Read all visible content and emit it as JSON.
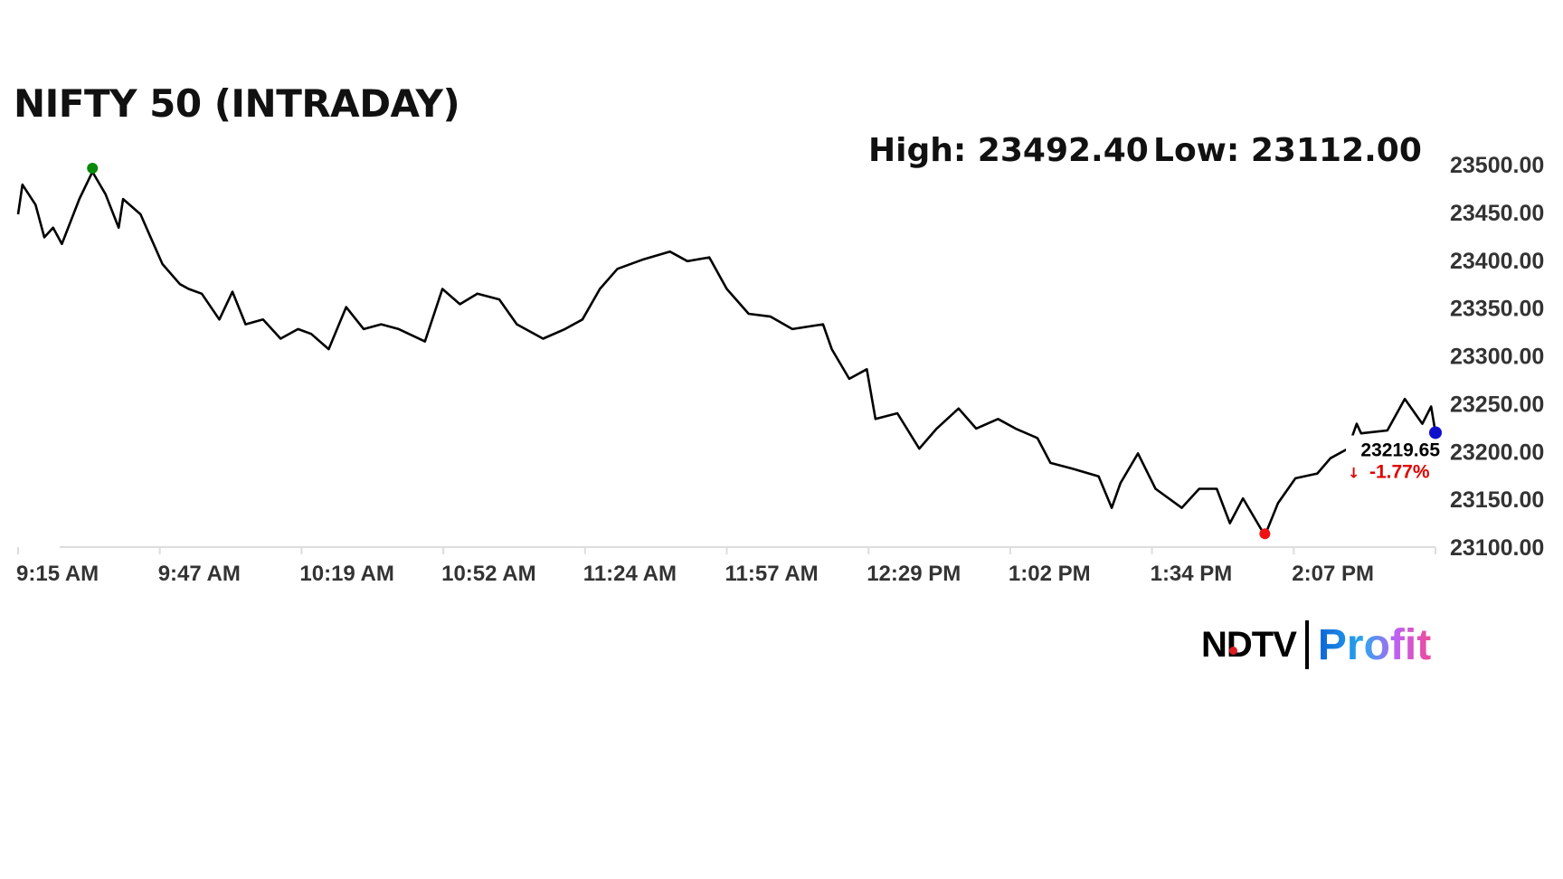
{
  "header": {
    "title": "NIFTY 50 (INTRADAY)",
    "high_label": "High: 23492.40",
    "low_label": "Low: 23112.00"
  },
  "logo": {
    "brand": "NDTV",
    "product": "Profit"
  },
  "chart_data": {
    "type": "line",
    "title": "NIFTY 50 (INTRADAY)",
    "xlabel": "",
    "ylabel": "",
    "x_ticks": [
      "9:15 AM",
      "9:47 AM",
      "10:19 AM",
      "10:52 AM",
      "11:24 AM",
      "11:57 AM",
      "12:29 PM",
      "1:02 PM",
      "1:34 PM",
      "2:07 PM"
    ],
    "y_ticks": [
      "23100.00",
      "23150.00",
      "23200.00",
      "23250.00",
      "23300.00",
      "23350.00",
      "23400.00",
      "23450.00",
      "23500.00"
    ],
    "xlim": [
      "09:15",
      "14:39"
    ],
    "ylim": [
      23100,
      23500
    ],
    "grid": false,
    "line_color": "#000000",
    "high": {
      "time": "09:32",
      "value": 23492.4,
      "color": "#0a8a0a"
    },
    "low": {
      "time": "14:00",
      "value": 23112.0,
      "color": "#ee1111"
    },
    "last": {
      "time": "14:39",
      "value": 23219.65,
      "value_label": "23219.65",
      "change_label": "-1.77%",
      "color": "#1010cc",
      "change_color": "#e00000"
    },
    "points": [
      [
        "09:15",
        23448
      ],
      [
        "09:16",
        23479
      ],
      [
        "09:19",
        23458
      ],
      [
        "09:21",
        23424
      ],
      [
        "09:23",
        23434
      ],
      [
        "09:25",
        23417
      ],
      [
        "09:29",
        23464
      ],
      [
        "09:32",
        23492.4
      ],
      [
        "09:35",
        23469
      ],
      [
        "09:38",
        23434
      ],
      [
        "09:39",
        23464
      ],
      [
        "09:43",
        23448
      ],
      [
        "09:45",
        23427
      ],
      [
        "09:48",
        23396
      ],
      [
        "09:52",
        23375
      ],
      [
        "09:54",
        23370
      ],
      [
        "09:57",
        23365
      ],
      [
        "10:01",
        23338
      ],
      [
        "10:04",
        23367
      ],
      [
        "10:07",
        23333
      ],
      [
        "10:11",
        23338
      ],
      [
        "10:15",
        23318
      ],
      [
        "10:19",
        23328
      ],
      [
        "10:22",
        23323
      ],
      [
        "10:26",
        23307
      ],
      [
        "10:30",
        23351
      ],
      [
        "10:34",
        23328
      ],
      [
        "10:38",
        23333
      ],
      [
        "10:42",
        23328
      ],
      [
        "10:48",
        23315
      ],
      [
        "10:52",
        23370
      ],
      [
        "10:56",
        23354
      ],
      [
        "11:00",
        23365
      ],
      [
        "11:05",
        23359
      ],
      [
        "11:09",
        23333
      ],
      [
        "11:15",
        23318
      ],
      [
        "11:20",
        23328
      ],
      [
        "11:24",
        23338
      ],
      [
        "11:28",
        23370
      ],
      [
        "11:32",
        23391
      ],
      [
        "11:38",
        23401
      ],
      [
        "11:44",
        23409
      ],
      [
        "11:48",
        23399
      ],
      [
        "11:53",
        23403
      ],
      [
        "11:57",
        23370
      ],
      [
        "12:02",
        23344
      ],
      [
        "12:07",
        23341
      ],
      [
        "12:12",
        23328
      ],
      [
        "12:19",
        23333
      ],
      [
        "12:21",
        23307
      ],
      [
        "12:25",
        23276
      ],
      [
        "12:29",
        23286
      ],
      [
        "12:31",
        23234
      ],
      [
        "12:36",
        23240
      ],
      [
        "12:41",
        23203
      ],
      [
        "12:45",
        23224
      ],
      [
        "12:50",
        23245
      ],
      [
        "12:54",
        23224
      ],
      [
        "12:59",
        23234
      ],
      [
        "13:03",
        23224
      ],
      [
        "13:08",
        23214
      ],
      [
        "13:11",
        23188
      ],
      [
        "13:16",
        23182
      ],
      [
        "13:22",
        23174
      ],
      [
        "13:25",
        23141
      ],
      [
        "13:27",
        23167
      ],
      [
        "13:31",
        23198
      ],
      [
        "13:35",
        23161
      ],
      [
        "13:41",
        23141
      ],
      [
        "13:45",
        23161
      ],
      [
        "13:49",
        23161
      ],
      [
        "13:52",
        23125
      ],
      [
        "13:55",
        23151
      ],
      [
        "13:59",
        23120
      ],
      [
        "14:00",
        23112
      ],
      [
        "14:03",
        23146
      ],
      [
        "14:07",
        23172
      ],
      [
        "14:12",
        23177
      ],
      [
        "14:15",
        23193
      ],
      [
        "14:19",
        23203
      ],
      [
        "14:21",
        23229
      ],
      [
        "14:22",
        23219
      ],
      [
        "14:28",
        23222
      ],
      [
        "14:32",
        23255
      ],
      [
        "14:36",
        23229
      ],
      [
        "14:38",
        23247
      ],
      [
        "14:39",
        23219.65
      ]
    ]
  }
}
